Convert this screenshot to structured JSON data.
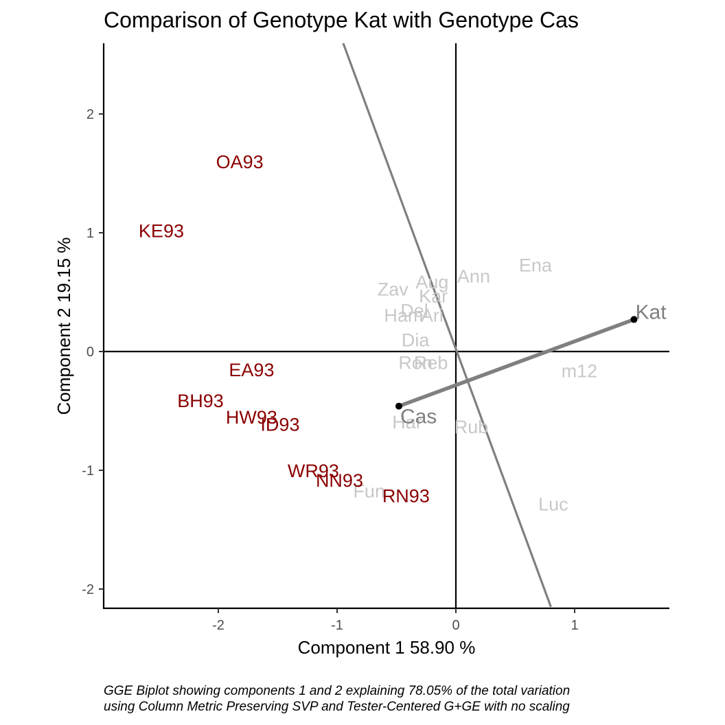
{
  "chart_data": {
    "type": "scatter",
    "title": "Comparison of Genotype Kat with Genotype Cas",
    "xlabel": "Component 1 58.90 %",
    "ylabel": "Component 2 19.15 %",
    "caption_line1": "GGE Biplot showing components 1 and 2 explaining 78.05% of the total variation",
    "caption_line2": "using Column Metric Preserving SVP and Tester-Centered G+GE with no scaling",
    "xlim": [
      -2.9,
      1.8
    ],
    "ylim": [
      -2.15,
      2.6
    ],
    "x_ticks": [
      -2,
      -1,
      0,
      1
    ],
    "y_ticks": [
      -2,
      -1,
      0,
      1,
      2
    ],
    "x_tick_labels": [
      "-2",
      "-1",
      "0",
      "1"
    ],
    "y_tick_labels": [
      "-2",
      "-1",
      "0",
      "1",
      "2"
    ],
    "grid": false,
    "colors": {
      "environment": "#8b0000",
      "genotype": "#c8c8c8",
      "focus": "#7f7f7f",
      "axis": "#000000",
      "line": "#808080"
    },
    "comparison": {
      "genotype_a": "Kat",
      "genotype_b": "Cas",
      "a_point": [
        1.5,
        0.27
      ],
      "b_point": [
        -0.48,
        -0.46
      ],
      "perpendicular_line": [
        [
          -0.95,
          2.6
        ],
        [
          0.8,
          -2.15
        ]
      ]
    },
    "environments": [
      {
        "label": "OA93",
        "x": -1.82,
        "y": 1.6
      },
      {
        "label": "KE93",
        "x": -2.48,
        "y": 1.02
      },
      {
        "label": "EA93",
        "x": -1.72,
        "y": -0.15
      },
      {
        "label": "BH93",
        "x": -2.15,
        "y": -0.41
      },
      {
        "label": "HW93",
        "x": -1.72,
        "y": -0.55
      },
      {
        "label": "ID93",
        "x": -1.48,
        "y": -0.61
      },
      {
        "label": "WR93",
        "x": -1.2,
        "y": -1.0
      },
      {
        "label": "NN93",
        "x": -0.98,
        "y": -1.08
      },
      {
        "label": "RN93",
        "x": -0.42,
        "y": -1.21
      }
    ],
    "genotypes": [
      {
        "label": "Ena",
        "x": 0.67,
        "y": 0.73
      },
      {
        "label": "Ann",
        "x": 0.15,
        "y": 0.64
      },
      {
        "label": "Aug",
        "x": -0.2,
        "y": 0.59
      },
      {
        "label": "Zav",
        "x": -0.53,
        "y": 0.53
      },
      {
        "label": "Kar",
        "x": -0.19,
        "y": 0.47
      },
      {
        "label": "Del",
        "x": -0.35,
        "y": 0.35
      },
      {
        "label": "Ari",
        "x": -0.2,
        "y": 0.31
      },
      {
        "label": "Ham",
        "x": -0.44,
        "y": 0.31
      },
      {
        "label": "Dia",
        "x": -0.34,
        "y": 0.1
      },
      {
        "label": "Ron",
        "x": -0.34,
        "y": -0.09
      },
      {
        "label": "Reb",
        "x": -0.21,
        "y": -0.09
      },
      {
        "label": "m12",
        "x": 1.04,
        "y": -0.16
      },
      {
        "label": "Har",
        "x": -0.41,
        "y": -0.59
      },
      {
        "label": "Rub",
        "x": 0.13,
        "y": -0.63
      },
      {
        "label": "Fun",
        "x": -0.73,
        "y": -1.17
      },
      {
        "label": "Luc",
        "x": 0.82,
        "y": -1.28
      }
    ]
  }
}
